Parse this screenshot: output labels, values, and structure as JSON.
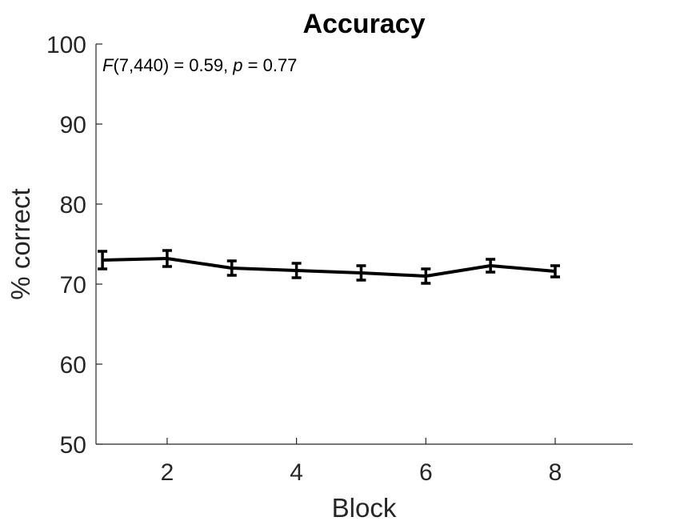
{
  "chart_data": {
    "type": "line",
    "title": "Accuracy",
    "xlabel": "Block",
    "ylabel": "% correct",
    "xlim": [
      0.9,
      9.2
    ],
    "ylim": [
      50,
      100
    ],
    "xticks": [
      2,
      4,
      6,
      8
    ],
    "yticks": [
      50,
      60,
      70,
      80,
      90,
      100
    ],
    "grid": false,
    "annotation": {
      "stat": "F",
      "args": "(7,440) = 0.59, ",
      "p_symbol": "p",
      "p_text": " = 0.77"
    },
    "series": [
      {
        "x": [
          1,
          2,
          3,
          4,
          5,
          6,
          7,
          8
        ],
        "values": [
          73.0,
          73.2,
          72.0,
          71.7,
          71.4,
          71.0,
          72.3,
          71.6
        ],
        "error": [
          1.1,
          1.0,
          0.9,
          0.9,
          0.9,
          0.9,
          0.8,
          0.7
        ],
        "color": "#000000"
      }
    ]
  }
}
